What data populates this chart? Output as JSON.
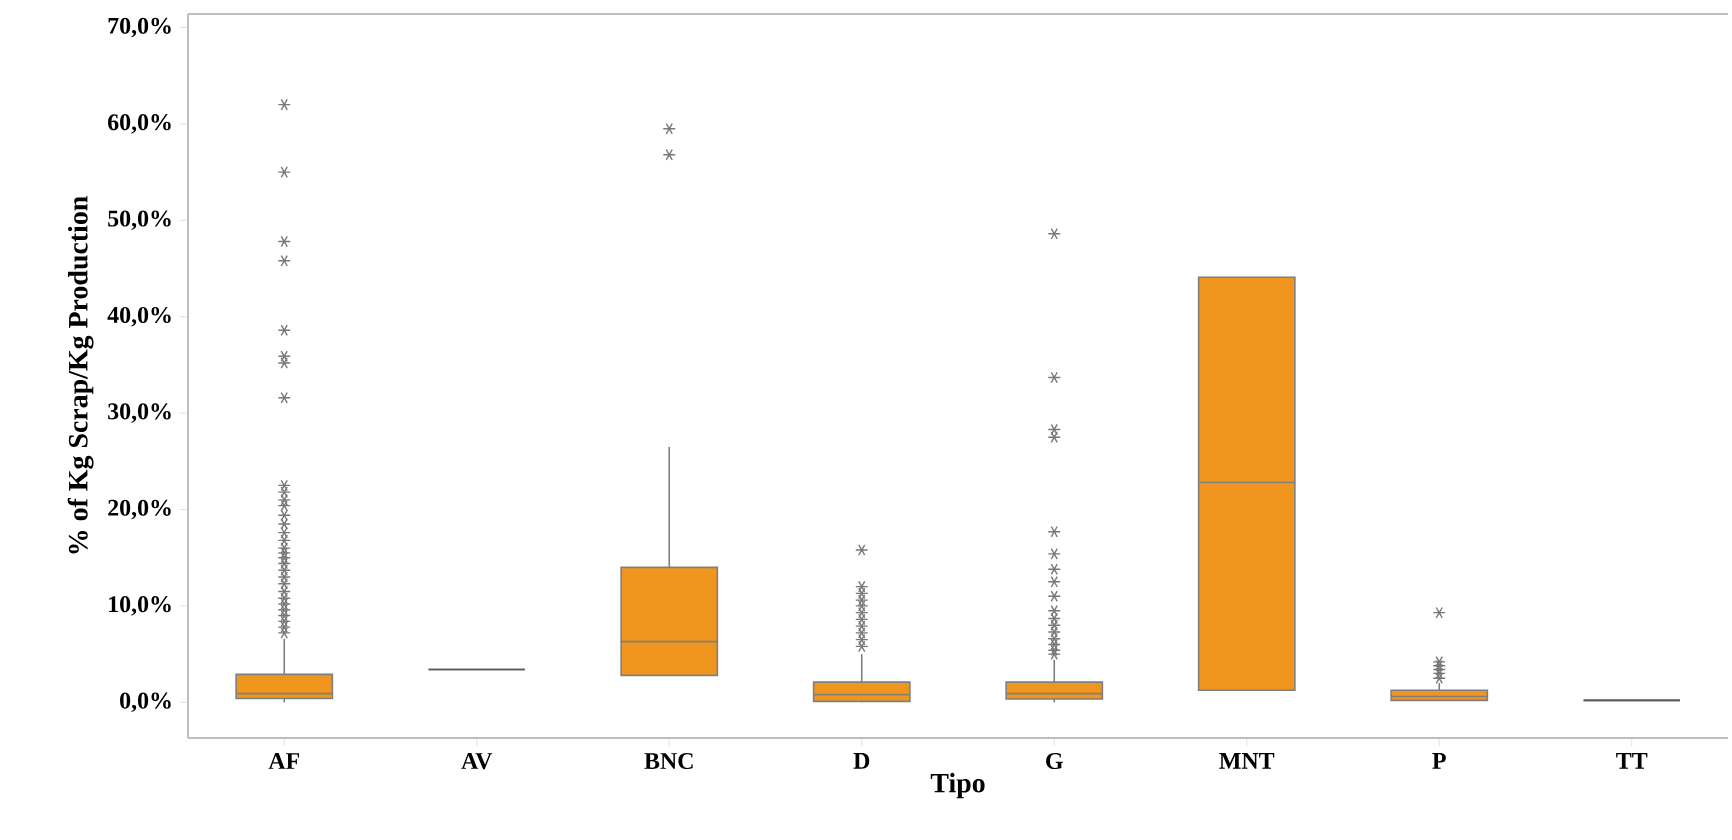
{
  "chart_data": {
    "type": "box",
    "xlabel": "Tipo",
    "ylabel": "% of Kg Scrap/Kg Production",
    "categories": [
      "AF",
      "AV",
      "BNC",
      "D",
      "G",
      "MNT",
      "P",
      "TT"
    ],
    "colors": [
      "#f0961e",
      "#595959",
      "#f0961e",
      "#f0961e",
      "#f0961e",
      "#f0961e",
      "#f0961e",
      "#595959"
    ],
    "marker": "star",
    "ylim": [
      -3.7,
      71.4
    ],
    "yticks": [
      {
        "value": 0,
        "label": "0,0%"
      },
      {
        "value": 10,
        "label": "10,0%"
      },
      {
        "value": 20,
        "label": "20,0%"
      },
      {
        "value": 30,
        "label": "30,0%"
      },
      {
        "value": 40,
        "label": "40,0%"
      },
      {
        "value": 50,
        "label": "50,0%"
      },
      {
        "value": 60,
        "label": "60,0%"
      },
      {
        "value": 70,
        "label": "70,0%"
      }
    ],
    "boxes": [
      {
        "low": 0,
        "q1": 0.4,
        "median": 0.9,
        "q3": 2.9,
        "high": 6.6,
        "outliers": [
          62,
          55,
          47.8,
          45.8,
          38.6,
          35.9,
          35.2,
          31.6,
          22.5,
          21.8,
          21,
          20.4,
          19.4,
          18.5,
          17.6,
          16.8,
          16,
          15.5,
          15,
          14.4,
          13.7,
          13,
          12.3,
          11.5,
          10.8,
          10.2,
          9.6,
          9,
          8.4,
          7.8,
          7.2
        ]
      },
      {
        "low": 3.4,
        "q1": 3.4,
        "median": 3.4,
        "q3": 3.4,
        "high": 3.4
      },
      {
        "low": 2.8,
        "q1": 2.8,
        "median": 6.3,
        "q3": 14.0,
        "high": 26.5,
        "outliers": [
          59.5,
          56.8
        ]
      },
      {
        "low": 0,
        "q1": 0.1,
        "median": 0.8,
        "q3": 2.1,
        "high": 5.0,
        "outliers": [
          15.8,
          12.0,
          11.3,
          10.6,
          10,
          9.3,
          8.6,
          7.9,
          7.2,
          6.5,
          5.8
        ]
      },
      {
        "low": 0,
        "q1": 0.35,
        "median": 0.9,
        "q3": 2.1,
        "high": 4.4,
        "outliers": [
          48.6,
          33.7,
          28.3,
          27.5,
          17.7,
          15.4,
          13.8,
          12.5,
          11,
          9.5,
          8.7,
          8,
          7.3,
          6.6,
          6,
          5.4,
          5.0
        ]
      },
      {
        "low": 1.25,
        "q1": 1.25,
        "median": 22.8,
        "q3": 44.1,
        "high": 44.1
      },
      {
        "low": 0.2,
        "q1": 0.2,
        "median": 0.6,
        "q3": 1.25,
        "high": 2.0,
        "outliers": [
          9.3,
          4.2,
          3.8,
          3.4,
          3.0,
          2.5
        ]
      },
      {
        "low": 0.2,
        "q1": 0.2,
        "median": 0.2,
        "q3": 0.2,
        "high": 0.2
      }
    ]
  }
}
